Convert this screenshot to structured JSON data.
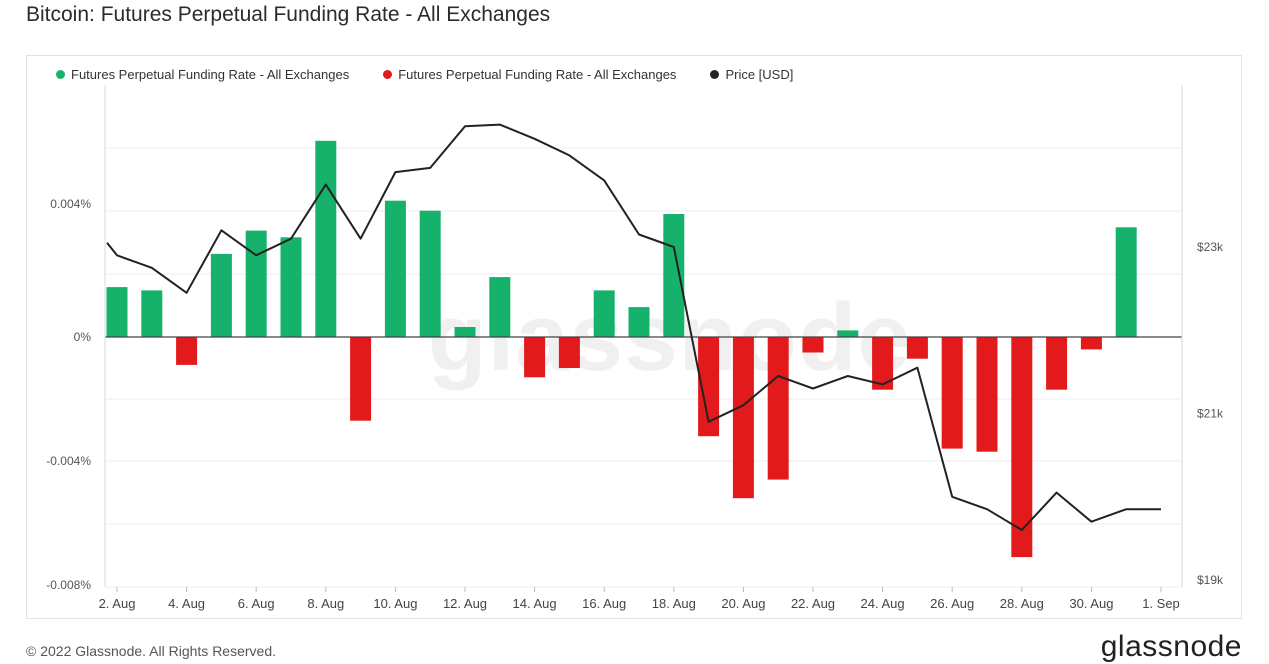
{
  "header": {
    "title": "Bitcoin: Futures Perpetual Funding Rate - All Exchanges"
  },
  "legend": [
    {
      "label": "Futures Perpetual Funding Rate - All Exchanges",
      "color": "#16b26b"
    },
    {
      "label": "Futures Perpetual Funding Rate - All Exchanges",
      "color": "#e31a1c"
    },
    {
      "label": "Price [USD]",
      "color": "#222222"
    }
  ],
  "watermark": "glassnode",
  "footer": {
    "copyright": "© 2022 Glassnode. All Rights Reserved.",
    "brand": "glassnode"
  },
  "chart_data": {
    "type": "bar",
    "x": [
      "2 Aug",
      "3 Aug",
      "4 Aug",
      "5 Aug",
      "6 Aug",
      "7 Aug",
      "8 Aug",
      "9 Aug",
      "10 Aug",
      "11 Aug",
      "12 Aug",
      "13 Aug",
      "14 Aug",
      "15 Aug",
      "16 Aug",
      "17 Aug",
      "18 Aug",
      "19 Aug",
      "20 Aug",
      "21 Aug",
      "22 Aug",
      "23 Aug",
      "24 Aug",
      "25 Aug",
      "26 Aug",
      "27 Aug",
      "28 Aug",
      "29 Aug",
      "30 Aug",
      "31 Aug",
      "1 Sep"
    ],
    "x_tick_labels": [
      "2. Aug",
      "4. Aug",
      "6. Aug",
      "8. Aug",
      "10. Aug",
      "12. Aug",
      "14. Aug",
      "16. Aug",
      "18. Aug",
      "20. Aug",
      "22. Aug",
      "24. Aug",
      "26. Aug",
      "28. Aug",
      "30. Aug",
      "1. Sep"
    ],
    "series": [
      {
        "name": "Futures Perpetual Funding Rate - All Exchanges",
        "axis": "left",
        "unit": "%",
        "colors": {
          "positive": "#16b26b",
          "negative": "#e31a1c"
        },
        "values": [
          0.0015,
          0.0014,
          -0.0009,
          0.0025,
          0.0032,
          0.003,
          0.0059,
          -0.0027,
          0.0041,
          0.0038,
          0.0003,
          0.0018,
          -0.0013,
          -0.001,
          0.0014,
          0.0009,
          0.0037,
          -0.0032,
          -0.0052,
          -0.0046,
          -0.0005,
          0.0002,
          -0.0017,
          -0.0007,
          -0.0036,
          -0.0037,
          -0.0071,
          -0.0017,
          -0.0004,
          0.0033,
          null
        ]
      },
      {
        "name": "Price [USD]",
        "axis": "right",
        "type": "line",
        "color": "#222222",
        "x": [
          "1 Aug 12:00",
          "2 Aug",
          "3 Aug",
          "4 Aug",
          "5 Aug",
          "6 Aug",
          "7 Aug",
          "8 Aug",
          "9 Aug",
          "10 Aug",
          "11 Aug",
          "12 Aug",
          "13 Aug",
          "14 Aug",
          "15 Aug",
          "16 Aug",
          "17 Aug",
          "18 Aug",
          "19 Aug",
          "20 Aug",
          "21 Aug",
          "22 Aug",
          "23 Aug",
          "24 Aug",
          "25 Aug",
          "26 Aug",
          "27 Aug",
          "28 Aug",
          "29 Aug",
          "30 Aug",
          "31 Aug",
          "1 Sep"
        ],
        "values": [
          23050,
          22900,
          22750,
          22450,
          23200,
          22900,
          23100,
          23750,
          23100,
          23900,
          23950,
          24450,
          24470,
          24300,
          24100,
          23800,
          23150,
          23000,
          20900,
          21100,
          21450,
          21300,
          21450,
          21350,
          21550,
          20000,
          19850,
          19600,
          20050,
          19700,
          19850,
          19850
        ]
      }
    ],
    "y_left": {
      "ticks": [
        "0.004%",
        "0%",
        "-0.004%",
        "-0.008%"
      ],
      "range": [
        -0.008,
        0.008
      ],
      "unit": "%"
    },
    "y_right": {
      "ticks": [
        "$23k",
        "$21k",
        "$19k"
      ],
      "range": [
        19000,
        25000
      ]
    },
    "grid": true,
    "legend_position": "top-left"
  }
}
